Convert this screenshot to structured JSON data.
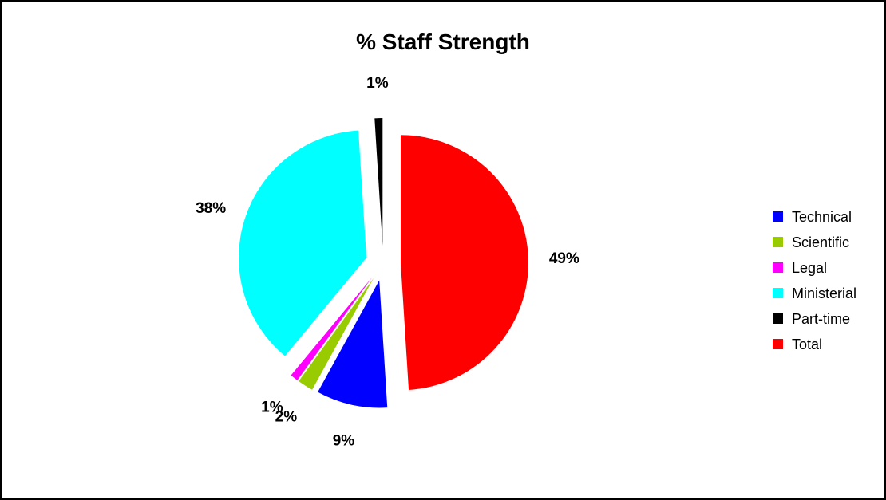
{
  "chart_data": {
    "type": "pie",
    "title": "% Staff Strength",
    "exploded": true,
    "legend_position": "right",
    "categories": [
      "Technical",
      "Scientific",
      "Legal",
      "Ministerial",
      "Part-time",
      "Total"
    ],
    "values": [
      9,
      2,
      1,
      38,
      1,
      49
    ],
    "labels": [
      "9%",
      "2%",
      "1%",
      "38%",
      "1%",
      "49%"
    ],
    "colors": [
      "#0000FF",
      "#99CC00",
      "#FF00FF",
      "#00FFFF",
      "#000000",
      "#FF0000"
    ]
  }
}
